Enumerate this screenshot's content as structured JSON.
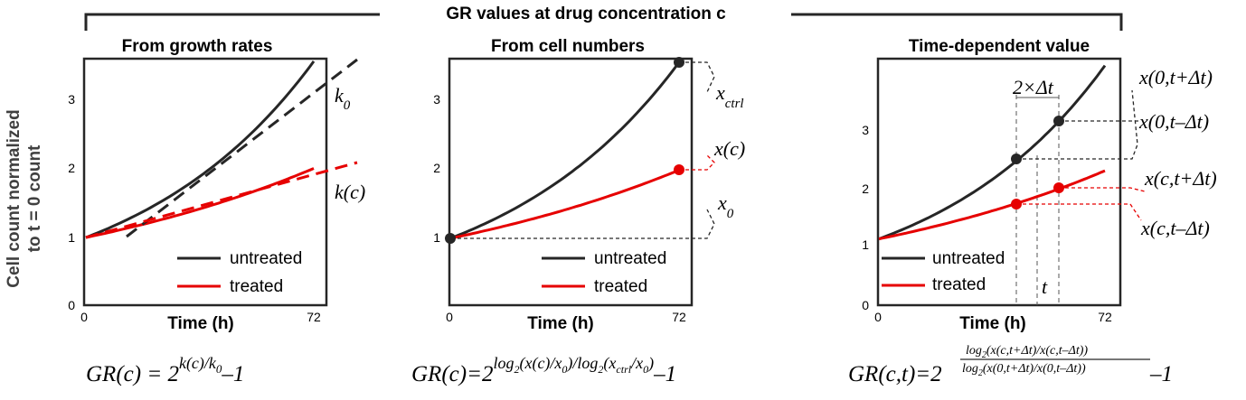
{
  "figure": {
    "header": "GR values at drug concentration c",
    "ylabel_line1": "Cell count normalized",
    "ylabel_line2": "to t = 0 count",
    "colors": {
      "untreated": "#262626",
      "treated": "#e60000",
      "guide": "#333333"
    }
  },
  "panels": [
    {
      "title": "From growth rates",
      "xlabel": "Time (h)",
      "xticks": [
        "0",
        "72"
      ],
      "yticks": [
        "0",
        "1",
        "2",
        "3"
      ],
      "legend": [
        "untreated",
        "treated"
      ],
      "annotations": {
        "k0": "k",
        "k0_sub": "0",
        "kc": "k(c)"
      },
      "equation": {
        "lhs": "GR(c) = 2",
        "exp": "k(c)/k",
        "exp_sub": "0",
        "tail": "–1"
      }
    },
    {
      "title": "From cell numbers",
      "xlabel": "Time (h)",
      "xticks": [
        "0",
        "72"
      ],
      "yticks": [
        "1",
        "2",
        "3"
      ],
      "legend": [
        "untreated",
        "treated"
      ],
      "annotations": {
        "xctrl": "x",
        "xctrl_sub": "ctrl",
        "xc": "x(c)",
        "x0": "x",
        "x0_sub": "0"
      },
      "equation": {
        "lhs": "GR(c)=2",
        "e1": "log",
        "e1s": "2",
        "e2": "(x(c)/x",
        "e2s": "0",
        "e3": ")/log",
        "e3s": "2",
        "e4": "(x",
        "e4s": "ctrl",
        "e5": "/x",
        "e5s": "0",
        "e6": ")",
        "tail": "–1"
      }
    },
    {
      "title": "Time-dependent value",
      "xlabel": "Time (h)",
      "xticks": [
        "0",
        "72"
      ],
      "yticks": [
        "0",
        "1",
        "2",
        "3"
      ],
      "legend": [
        "untreated",
        "treated"
      ],
      "annotations": {
        "dt": "2×Δt",
        "t": "t",
        "a1": "x(0,t+Δt)",
        "a2": "x(0,t–Δt)",
        "a3": "x(c,t+Δt)",
        "a4": "x(c,t–Δt)"
      },
      "equation": {
        "lhs": "GR(c,t)=2",
        "num": "log",
        "num_sub": "2",
        "num_rest": "(x(c,t+Δt)/x(c,t–Δt))",
        "den": "log",
        "den_sub": "2",
        "den_rest": "(x(0,t+Δt)/x(0,t–Δt))",
        "tail": "–1"
      }
    }
  ],
  "chart_data": [
    {
      "type": "line",
      "title": "From growth rates",
      "xlabel": "Time (h)",
      "ylabel": "Cell count normalized to t = 0 count",
      "xlim": [
        0,
        72
      ],
      "ylim": [
        0,
        3.55
      ],
      "series": [
        {
          "name": "untreated",
          "kind": "exponential",
          "x": [
            0,
            72
          ],
          "y_at_x0": 1,
          "y_at_xend": 3.55
        },
        {
          "name": "treated",
          "kind": "exponential",
          "x": [
            0,
            72
          ],
          "y_at_x0": 1,
          "y_at_xend": 2.0
        }
      ],
      "tangent_lines": [
        {
          "series": "untreated",
          "from": [
            14,
            1.0
          ],
          "to": [
            81,
            3.55
          ]
        },
        {
          "series": "treated",
          "from": [
            0,
            1.0
          ],
          "to": [
            81,
            2.05
          ]
        }
      ]
    },
    {
      "type": "line",
      "title": "From cell numbers",
      "xlabel": "Time (h)",
      "xlim": [
        0,
        72
      ],
      "ylim": [
        0,
        3.55
      ],
      "series": [
        {
          "name": "untreated",
          "kind": "exponential",
          "x": [
            0,
            72
          ],
          "y_at_x0": 1,
          "y_at_xend": 3.5
        },
        {
          "name": "treated",
          "kind": "exponential",
          "x": [
            0,
            72
          ],
          "y_at_x0": 1,
          "y_at_xend": 1.97
        }
      ],
      "markers": [
        {
          "series": "untreated",
          "x": 72,
          "y": 3.5
        },
        {
          "series": "treated",
          "x": 72,
          "y": 1.97
        },
        {
          "series": "both",
          "x": 0,
          "y": 1
        }
      ]
    },
    {
      "type": "line",
      "title": "Time-dependent value",
      "xlabel": "Time (h)",
      "xlim": [
        0,
        72
      ],
      "ylim": [
        0,
        3.9
      ],
      "series": [
        {
          "name": "untreated",
          "kind": "exponential",
          "x": [
            0,
            72
          ],
          "y_at_x0": 1.1,
          "y_at_xend": 4.1
        },
        {
          "name": "treated",
          "kind": "exponential",
          "x": [
            0,
            72
          ],
          "y_at_x0": 1.1,
          "y_at_xend": 2.28
        }
      ],
      "markers": [
        {
          "series": "untreated",
          "x": 45,
          "y": 2.47
        },
        {
          "series": "untreated",
          "x": 57,
          "y": 3.11
        },
        {
          "series": "treated",
          "x": 45,
          "y": 1.71
        },
        {
          "series": "treated",
          "x": 57,
          "y": 1.99
        }
      ],
      "reference_t": 51
    }
  ]
}
